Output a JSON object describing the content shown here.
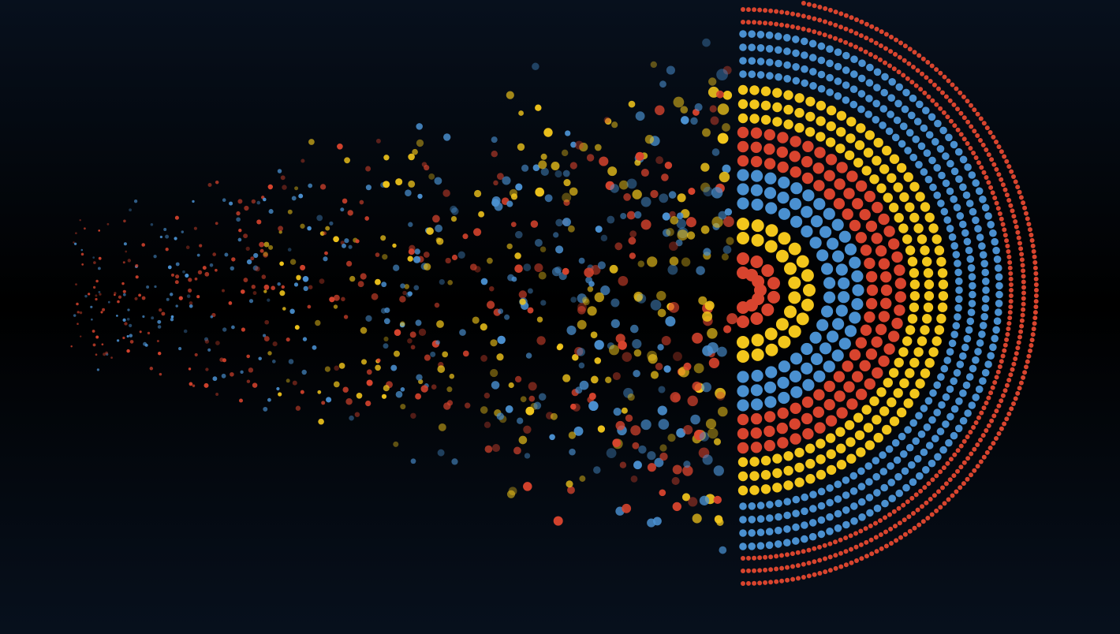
{
  "artwork": {
    "palette": {
      "red": "#d8442e",
      "blue": "#4a90d0",
      "yellow": "#f2c61c",
      "background_top": "#07101d",
      "background_middle": "#000000",
      "background_bottom": "#07101d"
    },
    "ring_colors_outer_to_inner": [
      "red",
      "blue",
      "yellow",
      "red",
      "blue",
      "yellow",
      "red"
    ],
    "shape": "dotted-concentric-half-rings-dispersing-left"
  }
}
